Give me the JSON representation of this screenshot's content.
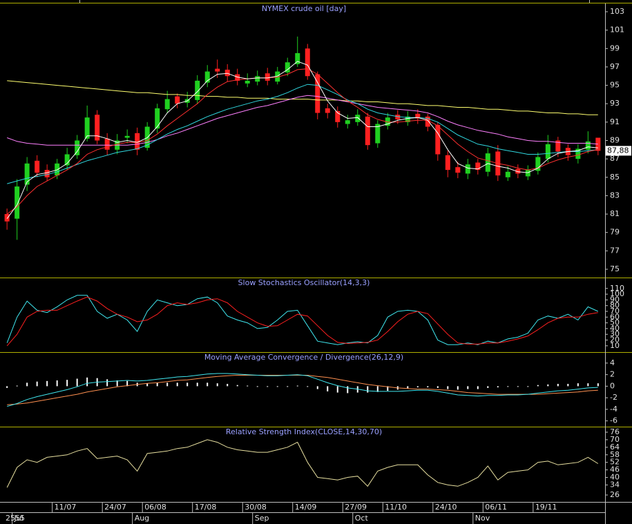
{
  "x_axis": {
    "xlim": [
      -0.7,
      59.7
    ],
    "year": "2555",
    "ticks": [
      {
        "value": 5,
        "label": "11/07"
      },
      {
        "value": 10,
        "label": "24/07"
      },
      {
        "value": 14,
        "label": "06/08"
      },
      {
        "value": 19,
        "label": "17/08"
      },
      {
        "value": 24,
        "label": "30/08"
      },
      {
        "value": 29,
        "label": "14/09"
      },
      {
        "value": 34,
        "label": "27/09"
      },
      {
        "value": 38,
        "label": "11/10"
      },
      {
        "value": 43,
        "label": "24/10"
      },
      {
        "value": 48,
        "label": "06/11"
      },
      {
        "value": 53,
        "label": "19/11"
      }
    ],
    "months": [
      {
        "value": 1,
        "label": "Jul"
      },
      {
        "value": 13,
        "label": "Aug"
      },
      {
        "value": 25,
        "label": "Sep"
      },
      {
        "value": 35,
        "label": "Oct"
      },
      {
        "value": 47,
        "label": "Nov"
      }
    ]
  },
  "chart_data": [
    {
      "type": "candlestick",
      "title": "NYMEX crude oil [day]",
      "up_color": "#20d020",
      "down_color": "#ff2020",
      "ylim": [
        74.1,
        103.9
      ],
      "yticks": [
        103,
        101,
        99,
        97,
        95,
        93,
        91,
        89,
        87,
        85,
        83,
        81,
        79,
        77,
        75
      ],
      "last_price_label": "87,88",
      "open": [
        81,
        80.5,
        84.2,
        86.8,
        85.8,
        85.2,
        86.3,
        87.4,
        89.2,
        91.8,
        89.2,
        88,
        89.3,
        89.8,
        88.2,
        90.3,
        92.4,
        93.8,
        93.1,
        93.4,
        95.3,
        96.8,
        96.7,
        96.2,
        95.2,
        95.4,
        96.3,
        95.4,
        96.4,
        97.3,
        99,
        96.2,
        92.5,
        92.2,
        90.8,
        91,
        91.6,
        88.7,
        90.6,
        91.8,
        91,
        91.9,
        91.6,
        90.7,
        87.4,
        86.1,
        85.4,
        86.6,
        85.6,
        87.8,
        85,
        85.9,
        85.1,
        85.7,
        87,
        89,
        88.2,
        87,
        88,
        89.3
      ],
      "high": [
        81.6,
        84.8,
        87.2,
        87.4,
        86.4,
        87,
        88.2,
        89.6,
        92.8,
        92.3,
        89.8,
        89.7,
        90.2,
        90.4,
        91,
        93,
        94.4,
        94.1,
        94.3,
        96.1,
        97.2,
        97.8,
        97.3,
        96.8,
        96.3,
        96.6,
        96.9,
        97,
        98,
        100.3,
        99.5,
        96.5,
        93,
        92.7,
        91.8,
        92.4,
        92,
        91.2,
        92,
        92.3,
        92.2,
        92.4,
        91.9,
        91,
        87.9,
        86.7,
        87,
        87,
        88.2,
        88.5,
        86.2,
        86.4,
        86.3,
        87.7,
        89.6,
        89.4,
        88.6,
        88.6,
        90,
        89.3
      ],
      "low": [
        79.3,
        78.2,
        83.5,
        85,
        84.6,
        84.8,
        85.8,
        87,
        88.9,
        88.6,
        87.4,
        87.5,
        88.7,
        87.4,
        87.9,
        89.8,
        92,
        92.5,
        92.6,
        93,
        94.8,
        95.8,
        95.4,
        95,
        94.8,
        95,
        95,
        95.1,
        96,
        97,
        95.6,
        91.3,
        91.4,
        90.4,
        90.3,
        90.6,
        88,
        88.2,
        90.2,
        90.8,
        90.6,
        90.8,
        90,
        86.8,
        85,
        84.9,
        84.8,
        85.3,
        85.1,
        84.6,
        84.6,
        84.9,
        84.7,
        85.3,
        86.6,
        87.2,
        86.8,
        86.5,
        87.6,
        87.4
      ],
      "close": [
        80.2,
        84,
        86.5,
        85.5,
        85,
        86.5,
        87.5,
        89,
        91.5,
        89,
        88,
        89,
        89.5,
        88,
        90.5,
        92.5,
        93.5,
        93,
        93.5,
        95.5,
        96.5,
        96.5,
        96,
        95.5,
        95.5,
        96,
        95.5,
        96.5,
        97.5,
        98.5,
        96,
        92,
        92,
        91,
        91.2,
        91.8,
        88.5,
        90.8,
        91.5,
        91.3,
        91.6,
        91.4,
        90.5,
        87.5,
        85.8,
        85.5,
        86.4,
        85.8,
        87.6,
        85.2,
        85.6,
        85.4,
        85.8,
        87.2,
        88.6,
        87.8,
        87.4,
        88.1,
        88.9,
        87.88
      ],
      "series": [
        {
          "color": "#ffff70",
          "values": [
            95.5,
            95.4,
            95.3,
            95.2,
            95.1,
            95.0,
            94.9,
            94.8,
            94.7,
            94.6,
            94.5,
            94.4,
            94.3,
            94.2,
            94.2,
            94.1,
            94.0,
            94.0,
            93.9,
            93.9,
            93.8,
            93.8,
            93.7,
            93.7,
            93.6,
            93.6,
            93.6,
            93.5,
            93.5,
            93.5,
            93.5,
            93.4,
            93.4,
            93.4,
            93.3,
            93.3,
            93.2,
            93.2,
            93.1,
            93.0,
            93.0,
            92.9,
            92.8,
            92.8,
            92.7,
            92.6,
            92.6,
            92.5,
            92.4,
            92.4,
            92.3,
            92.2,
            92.2,
            92.1,
            92.0,
            92.0,
            91.9,
            91.9,
            91.8,
            91.8
          ]
        },
        {
          "color": "#ff80ff",
          "values": [
            89.3,
            88.9,
            88.7,
            88.6,
            88.5,
            88.5,
            88.5,
            88.5,
            88.5,
            88.5,
            88.5,
            88.5,
            88.5,
            88.6,
            88.8,
            89.1,
            89.5,
            89.8,
            90.2,
            90.6,
            91,
            91.4,
            91.7,
            92,
            92.3,
            92.6,
            92.8,
            93.1,
            93.4,
            93.7,
            93.9,
            93.8,
            93.6,
            93.4,
            93.2,
            93,
            92.8,
            92.6,
            92.5,
            92.4,
            92.3,
            92.2,
            92,
            91.6,
            91.1,
            90.7,
            90.4,
            90.1,
            89.9,
            89.7,
            89.4,
            89.2,
            89,
            88.9,
            88.9,
            88.8,
            88.7,
            88.7,
            88.7,
            88.6
          ]
        },
        {
          "color": "#30d8e0",
          "values": [
            84.3,
            84.6,
            84.9,
            85.1,
            85.3,
            85.6,
            86,
            86.4,
            86.8,
            87.1,
            87.4,
            87.7,
            87.9,
            88.1,
            88.5,
            89.1,
            89.7,
            90.2,
            90.6,
            91.1,
            91.6,
            92,
            92.4,
            92.7,
            93,
            93.3,
            93.5,
            93.8,
            94.2,
            94.7,
            95.1,
            95,
            94.5,
            94,
            93.4,
            93,
            92.4,
            92,
            91.8,
            91.6,
            91.5,
            91.5,
            91.4,
            91,
            90.3,
            89.6,
            89.1,
            88.6,
            88.4,
            88.1,
            87.9,
            87.7,
            87.5,
            87.5,
            87.6,
            87.7,
            87.8,
            87.8,
            87.9,
            88
          ]
        },
        {
          "color": "#ff3030",
          "values": [
            81,
            81.8,
            83,
            84,
            84.6,
            85.2,
            85.8,
            86.5,
            87.5,
            88,
            88.3,
            88.6,
            88.8,
            88.8,
            89,
            89.7,
            90.6,
            91.4,
            92.2,
            93,
            94,
            94.8,
            95.4,
            95.6,
            95.7,
            95.8,
            95.8,
            95.9,
            96.2,
            96.7,
            96.8,
            96.2,
            95.2,
            94.2,
            93.3,
            92.6,
            91.8,
            91.3,
            91,
            91,
            91.1,
            91.2,
            91.2,
            90.6,
            89.6,
            88.6,
            87.8,
            87.1,
            86.8,
            86.5,
            86.3,
            86,
            85.8,
            86,
            86.5,
            86.9,
            87.2,
            87.4,
            87.8,
            88
          ]
        },
        {
          "color": "#ffffff",
          "values": [
            80.5,
            82,
            84.5,
            85.3,
            85.5,
            85.8,
            86.5,
            87.8,
            89.5,
            89.5,
            89.2,
            88.8,
            89,
            88.8,
            89.3,
            90.5,
            92,
            93,
            93.3,
            94.3,
            95.5,
            96.2,
            96.3,
            95.9,
            95.7,
            95.8,
            95.8,
            96,
            96.7,
            97.6,
            97.2,
            95.3,
            93.3,
            92,
            91.4,
            91.5,
            90.5,
            90.5,
            90.8,
            91.2,
            91.4,
            91.5,
            91.2,
            89.8,
            88,
            86.5,
            86,
            85.9,
            86.5,
            86.2,
            86,
            85.6,
            85.5,
            86,
            87,
            87.6,
            87.8,
            87.9,
            88.3,
            88.2
          ]
        }
      ]
    },
    {
      "type": "line",
      "title": "Slow Stochastics Oscillator(14,3,3)",
      "ylim": [
        -1,
        129
      ],
      "yticks": [
        110,
        100,
        90,
        80,
        70,
        60,
        50,
        40,
        30,
        20,
        10
      ],
      "series": [
        {
          "color": "#40e8f0",
          "values": [
            15,
            60,
            88,
            72,
            68,
            78,
            90,
            98,
            98,
            70,
            58,
            65,
            55,
            35,
            70,
            90,
            85,
            80,
            82,
            92,
            95,
            85,
            62,
            55,
            50,
            40,
            42,
            55,
            70,
            72,
            45,
            18,
            15,
            12,
            15,
            17,
            15,
            28,
            60,
            70,
            72,
            70,
            55,
            20,
            12,
            12,
            15,
            12,
            18,
            15,
            22,
            25,
            32,
            55,
            62,
            58,
            65,
            55,
            78,
            70
          ]
        },
        {
          "color": "#ff2020",
          "values": [
            10,
            30,
            60,
            70,
            72,
            72,
            80,
            88,
            95,
            88,
            75,
            65,
            60,
            52,
            55,
            65,
            80,
            85,
            82,
            85,
            90,
            92,
            85,
            70,
            60,
            50,
            44,
            45,
            55,
            65,
            62,
            45,
            28,
            16,
            14,
            15,
            16,
            20,
            35,
            52,
            65,
            70,
            66,
            48,
            30,
            15,
            13,
            13,
            15,
            15,
            18,
            22,
            27,
            38,
            50,
            58,
            60,
            60,
            65,
            68
          ]
        }
      ]
    },
    {
      "type": "line",
      "title": "Moving Average Convergence / Divergence(26,12,9)",
      "ylim": [
        -7,
        5.9
      ],
      "yticks": [
        4,
        2,
        0,
        -2,
        -4,
        -6
      ],
      "series": [
        {
          "type": "bar",
          "color": "#ffffff",
          "values": [
            -0.3,
            0.1,
            0.6,
            0.8,
            0.9,
            1,
            1.1,
            1.3,
            1.5,
            1.4,
            1.2,
            1,
            0.9,
            0.6,
            0.5,
            0.6,
            0.6,
            0.6,
            0.6,
            0.6,
            0.6,
            0.5,
            0.4,
            0.2,
            0.1,
            0,
            -0.1,
            -0.1,
            0,
            0.1,
            -0.1,
            -0.5,
            -0.9,
            -1.1,
            -1.2,
            -1.1,
            -1.1,
            -1,
            -0.8,
            -0.6,
            -0.4,
            -0.2,
            -0.2,
            -0.3,
            -0.5,
            -0.6,
            -0.5,
            -0.5,
            -0.3,
            -0.2,
            -0.1,
            -0.1,
            0,
            0.2,
            0.3,
            0.4,
            0.4,
            0.5,
            0.5,
            0.5
          ]
        },
        {
          "color": "#ff9050",
          "values": [
            -3.2,
            -3.1,
            -2.9,
            -2.6,
            -2.3,
            -2,
            -1.7,
            -1.4,
            -1,
            -0.7,
            -0.4,
            -0.1,
            0.1,
            0.3,
            0.5,
            0.6,
            0.8,
            1,
            1.1,
            1.3,
            1.5,
            1.7,
            1.8,
            1.9,
            1.9,
            1.9,
            1.9,
            1.9,
            1.9,
            1.9,
            1.9,
            1.7,
            1.5,
            1.2,
            0.9,
            0.6,
            0.3,
            0.1,
            -0.1,
            -0.3,
            -0.4,
            -0.5,
            -0.5,
            -0.6,
            -0.7,
            -0.9,
            -1.1,
            -1.2,
            -1.3,
            -1.4,
            -1.4,
            -1.4,
            -1.4,
            -1.4,
            -1.3,
            -1.2,
            -1.1,
            -1,
            -0.8,
            -0.7
          ]
        },
        {
          "color": "#40e8f0",
          "values": [
            -3.5,
            -3,
            -2.3,
            -1.8,
            -1.4,
            -1,
            -0.6,
            -0.1,
            0.5,
            0.7,
            0.8,
            0.9,
            1,
            0.9,
            1,
            1.2,
            1.4,
            1.6,
            1.7,
            1.9,
            2.1,
            2.2,
            2.2,
            2.1,
            2,
            1.9,
            1.8,
            1.8,
            1.9,
            2,
            1.8,
            1.2,
            0.6,
            0.1,
            -0.3,
            -0.5,
            -0.8,
            -0.9,
            -0.9,
            -0.9,
            -0.8,
            -0.7,
            -0.7,
            -0.9,
            -1.2,
            -1.5,
            -1.6,
            -1.7,
            -1.6,
            -1.6,
            -1.5,
            -1.5,
            -1.4,
            -1.2,
            -1,
            -0.8,
            -0.7,
            -0.5,
            -0.3,
            -0.2
          ]
        }
      ]
    },
    {
      "type": "line",
      "title": "Relative Strength Index(CLOSE,14,30,70)",
      "ylim": [
        20.5,
        80.4
      ],
      "yticks": [
        76,
        70,
        64,
        58,
        52,
        46,
        40,
        34,
        26
      ],
      "series": [
        {
          "color": "#e8e0a0",
          "values": [
            32,
            48,
            54,
            52,
            56,
            57,
            58,
            61,
            63,
            55,
            56,
            57,
            54,
            45,
            59,
            60,
            61,
            63,
            64,
            67,
            70,
            68,
            64,
            62,
            61,
            60,
            60,
            62,
            64,
            68,
            52,
            40,
            39,
            38,
            40,
            41,
            33,
            45,
            48,
            50,
            50,
            50,
            42,
            36,
            34,
            33,
            36,
            40,
            49,
            38,
            44,
            45,
            46,
            52,
            53,
            50,
            51,
            52,
            56,
            51
          ]
        }
      ]
    }
  ]
}
